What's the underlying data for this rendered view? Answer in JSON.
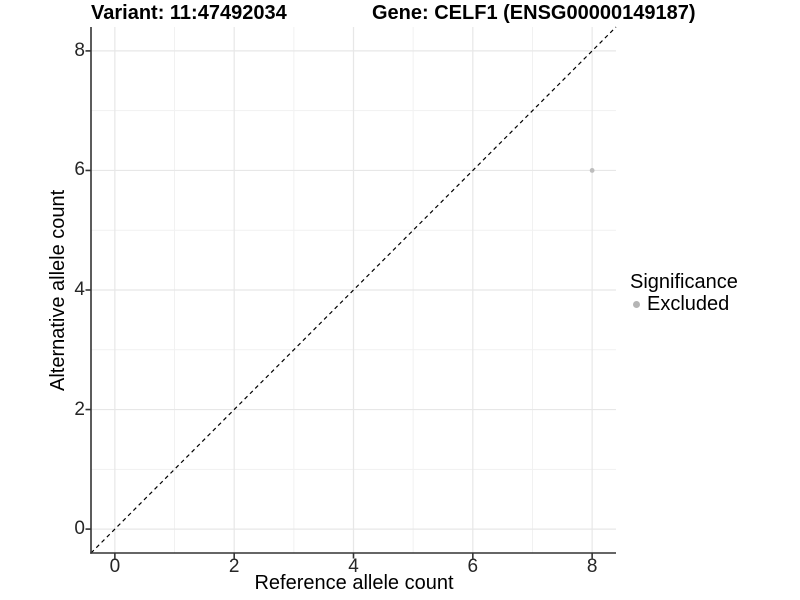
{
  "chart_data": {
    "type": "scatter",
    "title_left": "Variant: 11:47492034",
    "title_right": "Gene: CELF1 (ENSG00000149187)",
    "xlabel": "Reference allele count",
    "ylabel": "Alternative allele count",
    "xlim": [
      -0.4,
      8.4
    ],
    "ylim": [
      -0.4,
      8.4
    ],
    "xticks": [
      0,
      2,
      4,
      6,
      8
    ],
    "yticks": [
      0,
      2,
      4,
      6,
      8
    ],
    "x_minor_gridlines": [
      1,
      3,
      5,
      7
    ],
    "y_minor_gridlines": [
      1,
      3,
      5,
      7
    ],
    "grid": true,
    "identity_line": {
      "style": "dashed",
      "from": [
        -0.4,
        -0.4
      ],
      "to": [
        8.4,
        8.4
      ]
    },
    "points": [
      {
        "x": 8,
        "y": 6,
        "significance": "Excluded"
      }
    ],
    "legend": {
      "title": "Significance",
      "position": "right",
      "entries": [
        {
          "label": "Excluded",
          "marker": "circle",
          "color": "#b5b5b5"
        }
      ]
    }
  },
  "colors": {
    "background": "#ffffff",
    "grid_major": "#e7e7e7",
    "grid_minor": "#f1f1f1",
    "axis_line": "#333333",
    "tick_mark": "#333333",
    "identity_line": "#000000",
    "point": "#bdbdbd",
    "text": "#000000"
  }
}
